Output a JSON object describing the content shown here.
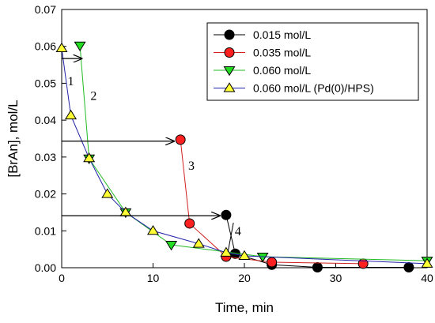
{
  "chart_data": {
    "type": "scatter",
    "xlabel": "Time, min",
    "ylabel": "[BrAn], mol/L",
    "xlim": [
      0,
      40
    ],
    "ylim": [
      0,
      0.07
    ],
    "x_ticks": [
      0,
      10,
      20,
      30,
      40
    ],
    "y_ticks": [
      0.0,
      0.01,
      0.02,
      0.03,
      0.04,
      0.05,
      0.06,
      0.07
    ],
    "x_tick_labels": [
      "0",
      "10",
      "20",
      "30",
      "40"
    ],
    "y_tick_labels": [
      "0.00",
      "0.01",
      "0.02",
      "0.03",
      "0.04",
      "0.05",
      "0.06",
      "0.07"
    ],
    "legend_position": "top-right",
    "series": [
      {
        "name": "0.015 mol/L",
        "marker": "circle",
        "color": "#000000",
        "line_color": "#000000",
        "x": [
          18,
          19,
          23,
          28,
          38
        ],
        "y": [
          0.0143,
          0.0038,
          0.0008,
          0.0001,
          0.0001
        ]
      },
      {
        "name": "0.035 mol/L",
        "marker": "circle",
        "color": "#ff2020",
        "line_color": "#d02020",
        "x": [
          13,
          14,
          18,
          23,
          33
        ],
        "y": [
          0.0347,
          0.012,
          0.003,
          0.0015,
          0.0011
        ]
      },
      {
        "name": "0.060 mol/L",
        "marker": "triangle-down",
        "color": "#22dd22",
        "line_color": "#22bb22",
        "x": [
          2,
          3,
          7,
          12,
          22,
          40
        ],
        "y": [
          0.0602,
          0.0296,
          0.015,
          0.0062,
          0.003,
          0.0019
        ]
      },
      {
        "name": "0.060 mol/L (Pd(0)/HPS)",
        "marker": "triangle-up",
        "color": "#ffff33",
        "line_color": "#2222aa",
        "x": [
          0,
          1,
          3,
          5,
          7,
          10,
          15,
          18,
          20,
          40
        ],
        "y": [
          0.0595,
          0.0413,
          0.0297,
          0.02,
          0.015,
          0.01,
          0.0065,
          0.0041,
          0.0032,
          0.0011
        ]
      }
    ],
    "annotations": [
      {
        "label": "1",
        "x": 1.0,
        "y": 0.0495
      },
      {
        "label": "2",
        "x": 3.5,
        "y": 0.0455
      },
      {
        "label": "3",
        "x": 14.2,
        "y": 0.0265
      },
      {
        "label": "4",
        "x": 19.3,
        "y": 0.0088
      }
    ],
    "arrows": [
      {
        "from": [
          0,
          0.0567
        ],
        "to": [
          2.2,
          0.0567
        ]
      },
      {
        "from": [
          0,
          0.0343
        ],
        "to": [
          12.3,
          0.0343
        ]
      },
      {
        "from": [
          0,
          0.0141
        ],
        "to": [
          17.3,
          0.0141
        ]
      }
    ],
    "leader_lines": [
      {
        "from": [
          18.8,
          0.0122
        ],
        "to": [
          18.2,
          0.0043
        ]
      }
    ]
  }
}
